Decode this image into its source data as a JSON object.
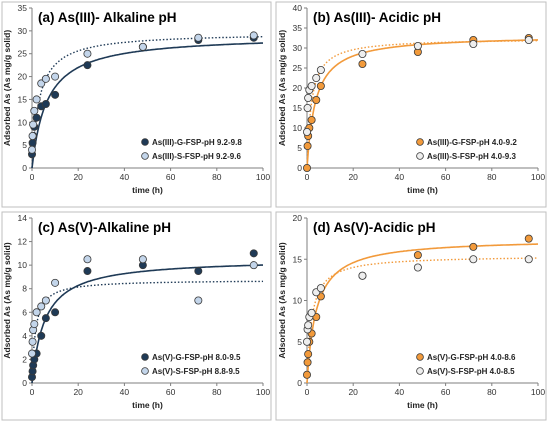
{
  "chart_data": [
    {
      "type": "scatter",
      "title": "(a) As(III)- Alkaline pH",
      "xlabel": "time (h)",
      "ylabel": "Adsorbed As (As mg/g solid)",
      "xlim": [
        0,
        100
      ],
      "ylim": [
        0,
        35
      ],
      "xticks": [
        "0",
        "20",
        "40",
        "60",
        "80",
        "100"
      ],
      "yticks": [
        "0",
        "5",
        "10",
        "15",
        "20",
        "25",
        "30",
        "35"
      ],
      "legend": "bottom-right",
      "series": [
        {
          "name": "As(III)-G-FSP-pH 9.2-9.8",
          "fill": "#1f3a56",
          "x": [
            0,
            0.25,
            0.5,
            1,
            2,
            4,
            6,
            10,
            24,
            48,
            72,
            96
          ],
          "y": [
            3,
            5.5,
            7,
            9,
            11,
            13.5,
            14,
            16,
            22.5,
            26.5,
            28,
            28.5
          ],
          "fit_line": "solid",
          "fit_color": "#1f3a56"
        },
        {
          "name": "As(III)-S-FSP-pH 9.2-9.6",
          "fill": "#c3d5ea",
          "x": [
            0,
            0.25,
            0.5,
            1,
            2,
            4,
            6,
            10,
            24,
            48,
            72,
            96
          ],
          "y": [
            4,
            7,
            9.5,
            12.5,
            15,
            18.5,
            19.5,
            20,
            25,
            26.5,
            28.5,
            29
          ],
          "fit_line": "dotted",
          "fit_color": "#1f3a56"
        }
      ]
    },
    {
      "type": "scatter",
      "title": "(b) As(III)- Acidic pH",
      "xlabel": "time (h)",
      "ylabel": "Adsorbed As (As mg/g solid)",
      "xlim": [
        0,
        100
      ],
      "ylim": [
        0,
        40
      ],
      "xticks": [
        "0",
        "20",
        "40",
        "60",
        "80",
        "100"
      ],
      "yticks": [
        "0",
        "5",
        "10",
        "15",
        "20",
        "25",
        "30",
        "35",
        "40"
      ],
      "legend": "bottom-right",
      "series": [
        {
          "name": "As(III)-G-FSP-pH 4.0-9.2",
          "fill": "#f29a3b",
          "x": [
            0,
            0.25,
            0.5,
            1,
            2,
            4,
            6,
            24,
            48,
            72,
            96
          ],
          "y": [
            0,
            5.5,
            8,
            10,
            12,
            17,
            20.5,
            26,
            29,
            32,
            32.5
          ],
          "fit_line": "solid",
          "fit_color": "#f29a3b"
        },
        {
          "name": "As(III)-S-FSP-pH 4.0-9.3",
          "fill": "#eeeeee",
          "x": [
            0,
            0.25,
            0.5,
            1,
            2,
            4,
            6,
            24,
            48,
            72,
            96
          ],
          "y": [
            9,
            15,
            17.5,
            19.5,
            20.5,
            22.5,
            24.5,
            28.5,
            30.5,
            31,
            32
          ],
          "fit_line": "dotted",
          "fit_color": "#f29a3b"
        }
      ]
    },
    {
      "type": "scatter",
      "title": "(c) As(V)-Alkaline pH",
      "xlabel": "time (h)",
      "ylabel": "Adsorbed As (As mg/g solid)",
      "xlim": [
        0,
        100
      ],
      "ylim": [
        0,
        14
      ],
      "xticks": [
        "0",
        "20",
        "40",
        "60",
        "80",
        "100"
      ],
      "yticks": [
        "0",
        "2",
        "4",
        "6",
        "8",
        "10",
        "12",
        "14"
      ],
      "legend": "bottom-right",
      "series": [
        {
          "name": "As(V)-G-FSP-pH 8.0-9.5",
          "fill": "#1f3a56",
          "x": [
            0,
            0.25,
            0.5,
            1,
            2,
            4,
            6,
            10,
            24,
            48,
            72,
            96
          ],
          "y": [
            0.5,
            1,
            1.5,
            2,
            2.5,
            4,
            5.5,
            6,
            9.5,
            10,
            9.5,
            11
          ],
          "fit_line": "solid",
          "fit_color": "#1f3a56"
        },
        {
          "name": "As(V)-S-FSP-pH 8.8-9.5",
          "fill": "#c3d5ea",
          "x": [
            0,
            0.25,
            0.5,
            1,
            2,
            4,
            6,
            10,
            24,
            48,
            72,
            96
          ],
          "y": [
            2.5,
            3.5,
            4.5,
            5,
            6,
            6.5,
            7,
            8.5,
            10.5,
            10.5,
            7,
            10
          ],
          "fit_line": "dotted",
          "fit_color": "#1f3a56"
        }
      ]
    },
    {
      "type": "scatter",
      "title": "(d) As(V)-Acidic pH",
      "xlabel": "time (h)",
      "ylabel": "Adsorbed As (As mg/g solid)",
      "xlim": [
        0,
        100
      ],
      "ylim": [
        0,
        20
      ],
      "xticks": [
        "0",
        "20",
        "40",
        "60",
        "80",
        "100"
      ],
      "yticks": [
        "0",
        "5",
        "10",
        "15",
        "20"
      ],
      "legend": "bottom-right",
      "series": [
        {
          "name": "As(V)-G-FSP-pH 4.0-8.6",
          "fill": "#f29a3b",
          "x": [
            0,
            0.25,
            0.5,
            1,
            2,
            4,
            6,
            24,
            48,
            72,
            96
          ],
          "y": [
            1,
            2.5,
            3.5,
            5,
            6,
            8,
            10.5,
            13,
            15.5,
            16.5,
            17.5
          ],
          "fit_line": "solid",
          "fit_color": "#f29a3b"
        },
        {
          "name": "As(V)-S-FSP-pH 4.0-8.5",
          "fill": "#eeeeee",
          "x": [
            0,
            0.25,
            0.5,
            1,
            2,
            4,
            6,
            24,
            48,
            72,
            96
          ],
          "y": [
            5,
            6.5,
            7,
            8,
            8.5,
            11,
            11.5,
            13,
            14,
            15,
            15
          ],
          "fit_line": "dotted",
          "fit_color": "#f29a3b"
        }
      ]
    }
  ]
}
